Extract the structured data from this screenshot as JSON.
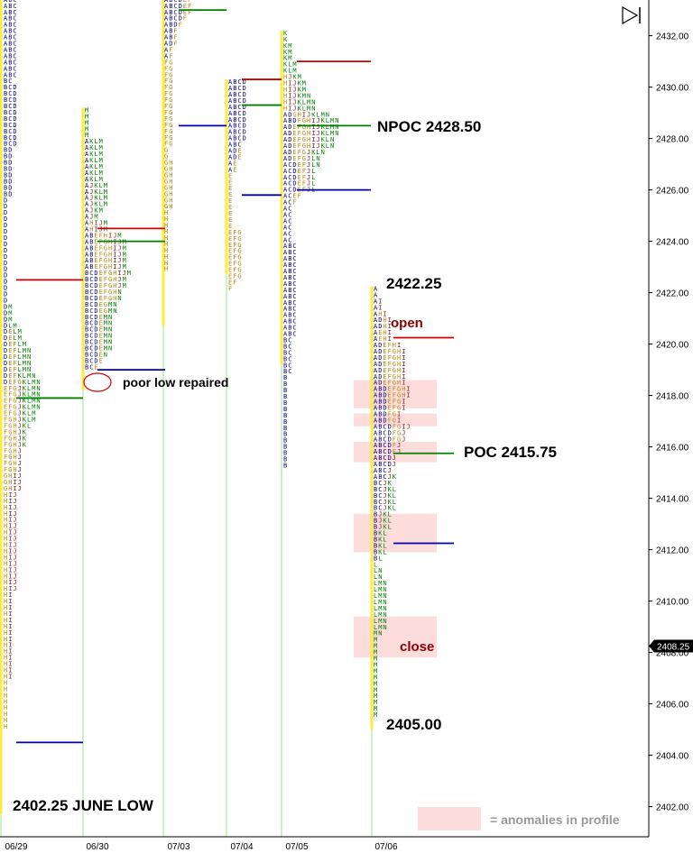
{
  "chart_data": {
    "type": "market-profile",
    "y_axis": {
      "ticks": [
        2402,
        2404,
        2406,
        2408,
        2410,
        2412,
        2414,
        2416,
        2418,
        2420,
        2422,
        2424,
        2426,
        2428,
        2430,
        2432
      ],
      "tick_labels": [
        "2402.00",
        "2404.00",
        "2406.00",
        "2408.00",
        "2410.00",
        "2412.00",
        "2414.00",
        "2416.00",
        "2418.00",
        "2420.00",
        "2422.00",
        "2424.00",
        "2426.00",
        "2428.00",
        "2430.00",
        "2432.00"
      ],
      "ylim": [
        2400.9,
        2433.5
      ],
      "last_price": "2408.25"
    },
    "x_axis": {
      "labels": [
        "06/29",
        "06/30",
        "07/03",
        "07/04",
        "07/05",
        "07/06"
      ]
    },
    "sessions": [
      {
        "date": "06/29",
        "high": 2433.5,
        "low": 2401.7,
        "value_area": [
          2401.7,
          2433.5
        ],
        "profile_rows": [
          "ABC",
          "ABC",
          "ABC",
          "ABC",
          "ABC",
          "ABC",
          "ABC",
          "ABC",
          "ABC",
          "ABC",
          "ABC",
          "ABC",
          "ABC",
          "BC",
          "BCD",
          "BCD",
          "BCD",
          "BCD",
          "BCD",
          "BCD",
          "BCD",
          "BCD",
          "BCD",
          "BCD",
          "BD",
          "BD",
          "BD",
          "BD",
          "BD",
          "BD",
          "BD",
          "BD",
          "D",
          "D",
          "D",
          "D",
          "D",
          "D",
          "D",
          "D",
          "D",
          "D",
          "D",
          "D",
          "D",
          "D",
          "D",
          "D",
          "D",
          "DM",
          "DM",
          "DM",
          "DLM",
          "DELM",
          "DELM",
          "DEFLM",
          "DEFLMN",
          "DEFLMN",
          "DEFLMN",
          "DEFLMN",
          "DEFKLMN",
          "DEFGKLMN",
          "EFGJKLMN",
          "EFGJKLMN",
          "EFGJKLMN",
          "EFGJKLMN",
          "EFGJKLM",
          "FGHJKLM",
          "FGHJKL",
          "FGHJK",
          "FGHJK",
          "FGHJK",
          "FGHJ",
          "FGHJ",
          "FGHJ",
          "FGHJ",
          "GHIJ",
          "GHIJ",
          "GHIJ",
          "HIJ",
          "HIJ",
          "HIJ",
          "HIJ",
          "HIJ",
          "HIJ",
          "HIJ",
          "HIJ",
          "HIJ",
          "HIJ",
          "HIJ",
          "HIJ",
          "HIJ",
          "HIJ",
          "HIJ",
          "HIJ",
          "HI",
          "HI",
          "HI",
          "HI",
          "HI",
          "HI",
          "HI",
          "HI",
          "HI",
          "HI",
          "HI",
          "HI",
          "HI",
          "HI",
          "H",
          "H",
          "H",
          "H",
          "H",
          "H",
          "H",
          "H"
        ]
      },
      {
        "date": "06/30",
        "high": 2429.2,
        "low": 2418.2,
        "value_area": [
          2418.2,
          2429.2
        ],
        "profile_rows": [
          "M",
          "M",
          "M",
          "M",
          "M",
          "AKLM",
          "AKLM",
          "AKLM",
          "AKLM",
          "AKLM",
          "AKLM",
          "AKLM",
          "AJKLM",
          "AJKLM",
          "AJKLM",
          "AJKLM",
          "AJKM",
          "AJM",
          "AHIJM",
          "AHIJM",
          "ABEFHIJM",
          "ABEFGHIJM",
          "ABEFGHIJM",
          "ABEFGHIJM",
          "ABEFGHIJM",
          "ABEFGHIJM",
          "BCDEFGHIJM",
          "BCDEFGHJM",
          "BCDEFGHJM",
          "BCDEFGHN",
          "BCDEFGHN",
          "BCDEGMN",
          "BCDEGMN",
          "BCDEMN",
          "BCDEMN",
          "BCDEMN",
          "BCDEMN",
          "BCDEMN",
          "BCDEMN",
          "BCDEN",
          "BCDE",
          "BCE"
        ]
      },
      {
        "date": "07/03",
        "high": 2433.5,
        "low": 2420.7,
        "value_area": [
          2420.7,
          2433.5
        ],
        "profile_rows": [
          "ABCDEF",
          "ABCDEF",
          "ABCDEF",
          "ABCDF",
          "ABDF",
          "ABF",
          "ABF",
          "ADF",
          "AF",
          "AF",
          "FG",
          "FG",
          "FG",
          "FG",
          "FG",
          "FG",
          "FG",
          "FG",
          "FG",
          "FG",
          "FG",
          "FG",
          "FG",
          "FG",
          "G",
          "G",
          "GH",
          "GH",
          "GH",
          "GH",
          "GH",
          "GH",
          "GH",
          "GH",
          "H",
          "H",
          "H",
          "H",
          "H",
          "H",
          "H",
          "H",
          "H",
          "H"
        ]
      },
      {
        "date": "07/04",
        "high": 2430.3,
        "low": 2422.7,
        "value_area": [
          2422.7,
          2430.3
        ],
        "profile_rows": [
          "ABCD",
          "ABCD",
          "ABCD",
          "ABCD",
          "ABCD",
          "ABCD",
          "ABCD",
          "ABCD",
          "ABCD",
          "ABCD",
          "ABC",
          "ADE",
          "ADE",
          "AE",
          "AE",
          "E",
          "E",
          "E",
          "E",
          "E",
          "E",
          "E",
          "E",
          "E",
          "EFG",
          "EFG",
          "EFG",
          "EFG",
          "EFG",
          "EFG",
          "EFG",
          "EFG",
          "EF",
          "F"
        ]
      },
      {
        "date": "07/05",
        "high": 2432.2,
        "low": 2419.2,
        "value_area": [
          2419.2,
          2432.2
        ],
        "profile_rows": [
          "K",
          "K",
          "KM",
          "KM",
          "KM",
          "KLM",
          "KLM",
          "HJKM",
          "HIJKM",
          "HIJKM",
          "HIJKMN",
          "HIJKLMN",
          "HIJKLMN",
          "ADGHIJKLMN",
          "ABDFGHIJKLMN",
          "ADEFGHIJKLMN",
          "ADEFGHIJKLMN",
          "ADEFGHIJKLN",
          "ADEFGHIJKLN",
          "ADEFGJKLN",
          "ADEFGJLN",
          "ACDEFJLN",
          "ACDEFJL",
          "ACDEFJL",
          "ACDEFJL",
          "ACDEFJL",
          "ACEF",
          "ACF",
          "AC",
          "AC",
          "AC",
          "AC",
          "AC",
          "AC",
          "ABC",
          "ABC",
          "ABC",
          "ABC",
          "ABC",
          "ABC",
          "ABC",
          "ABC",
          "ABC",
          "ABC",
          "ABC",
          "ABC",
          "ABC",
          "ABC",
          "ABC",
          "BC",
          "BC",
          "BC",
          "BC",
          "BC",
          "BC",
          "B",
          "B",
          "B",
          "B",
          "B",
          "B",
          "B",
          "B",
          "B",
          "B",
          "B",
          "B",
          "B",
          "B",
          "B"
        ]
      },
      {
        "date": "07/06",
        "high": 2422.25,
        "low": 2405.0,
        "value_area": [
          2405.0,
          2422.25
        ],
        "profile_rows": [
          "A",
          "A",
          "AI",
          "AI",
          "AHI",
          "ADHI",
          "ADHI",
          "AEHI",
          "AEHI",
          "ADEFHI",
          "ADEFGHI",
          "ADEFGHI",
          "ADEFGHI",
          "ADEFGHI",
          "ADEFGHI",
          "ADEFGHI",
          "ABDEFGHI",
          "ABDEFGHI",
          "ABDEFGI",
          "ABDEFGI",
          "ABDFGI",
          "ABDFGI",
          "ABCDFGIJ",
          "ABCDFGJ",
          "ABCDFGJ",
          "ABCDFJ",
          "ABCDFJ",
          "ABCDJ",
          "ABCDJ",
          "ABCJ",
          "ABCJK",
          "BCJK",
          "BCJKL",
          "BCJKL",
          "BCJKL",
          "BCJKL",
          "BJKL",
          "BJKL",
          "BJKL",
          "BKL",
          "BKL",
          "BKL",
          "BKL",
          "BL",
          "L",
          "LN",
          "LN",
          "LMN",
          "LMN",
          "LMN",
          "LMN",
          "LMN",
          "LMN",
          "LMN",
          "LMN",
          "MN",
          "M",
          "M",
          "M",
          "M",
          "M",
          "M",
          "M",
          "M",
          "M",
          "M",
          "M",
          "M",
          "M"
        ]
      }
    ],
    "reference_lines": [
      {
        "price": 2422.5,
        "from": "06/29",
        "to": "06/30",
        "color": "#cc0000"
      },
      {
        "price": 2417.9,
        "from": "06/29",
        "to": "06/30",
        "color": "#008000"
      },
      {
        "price": 2404.5,
        "from": "06/29",
        "to": "06/30",
        "color": "#0000aa"
      },
      {
        "price": 2424.5,
        "from": "06/30",
        "to": "07/03",
        "color": "#cc0000"
      },
      {
        "price": 2424.0,
        "from": "06/30",
        "to": "07/03",
        "color": "#008000"
      },
      {
        "price": 2419.0,
        "from": "06/30",
        "to": "07/03",
        "color": "#0000aa"
      },
      {
        "price": 2433.0,
        "from": "07/03",
        "to": "07/04",
        "color": "#008000"
      },
      {
        "price": 2428.5,
        "from": "07/03",
        "to": "07/04",
        "color": "#0000aa"
      },
      {
        "price": 2430.3,
        "from": "07/04",
        "to": "07/05",
        "color": "#cc0000"
      },
      {
        "price": 2429.3,
        "from": "07/04",
        "to": "07/05",
        "color": "#008000"
      },
      {
        "price": 2425.8,
        "from": "07/04",
        "to": "07/05",
        "color": "#0000aa"
      },
      {
        "price": 2431.0,
        "from": "07/05",
        "to": "07/06",
        "color": "#cc0000"
      },
      {
        "price": 2428.5,
        "from": "07/05",
        "to": "07/06",
        "color": "#008000"
      },
      {
        "price": 2426.0,
        "from": "07/05",
        "to": "07/06",
        "color": "#0000aa"
      },
      {
        "price": 2420.25,
        "from": "07/06",
        "to": "open-mark",
        "color": "#cc0000"
      },
      {
        "price": 2415.75,
        "from": "07/06",
        "to": "poc-mark",
        "color": "#008000"
      },
      {
        "price": 2412.25,
        "from": "07/06",
        "to": "va-mark",
        "color": "#0000aa"
      }
    ],
    "anomaly_zones": [
      [
        2417.5,
        2418.6
      ],
      [
        2416.8,
        2417.3
      ],
      [
        2415.4,
        2416.2
      ],
      [
        2411.9,
        2413.4
      ],
      [
        2407.8,
        2409.4
      ]
    ],
    "annotations": {
      "npoc": "NPOC 2428.50",
      "high_label": "2422.25",
      "open_label": "open",
      "poc_label": "POC 2415.75",
      "close_label": "close",
      "low_label": "2405.00",
      "poor_low": "poor low repaired",
      "june_low": "2402.25 JUNE LOW",
      "legend": "= anomalies in profile"
    }
  },
  "colors": {
    "a_d": "#000080",
    "e_h": "#b8860b",
    "i_j": "#8b1a1a",
    "k_n": "#008000",
    "open_line": "#cc0000",
    "poc_line": "#008000",
    "va_line": "#0000aa",
    "anomaly_fill": "#fddcdc",
    "axis_label": "#000000"
  }
}
